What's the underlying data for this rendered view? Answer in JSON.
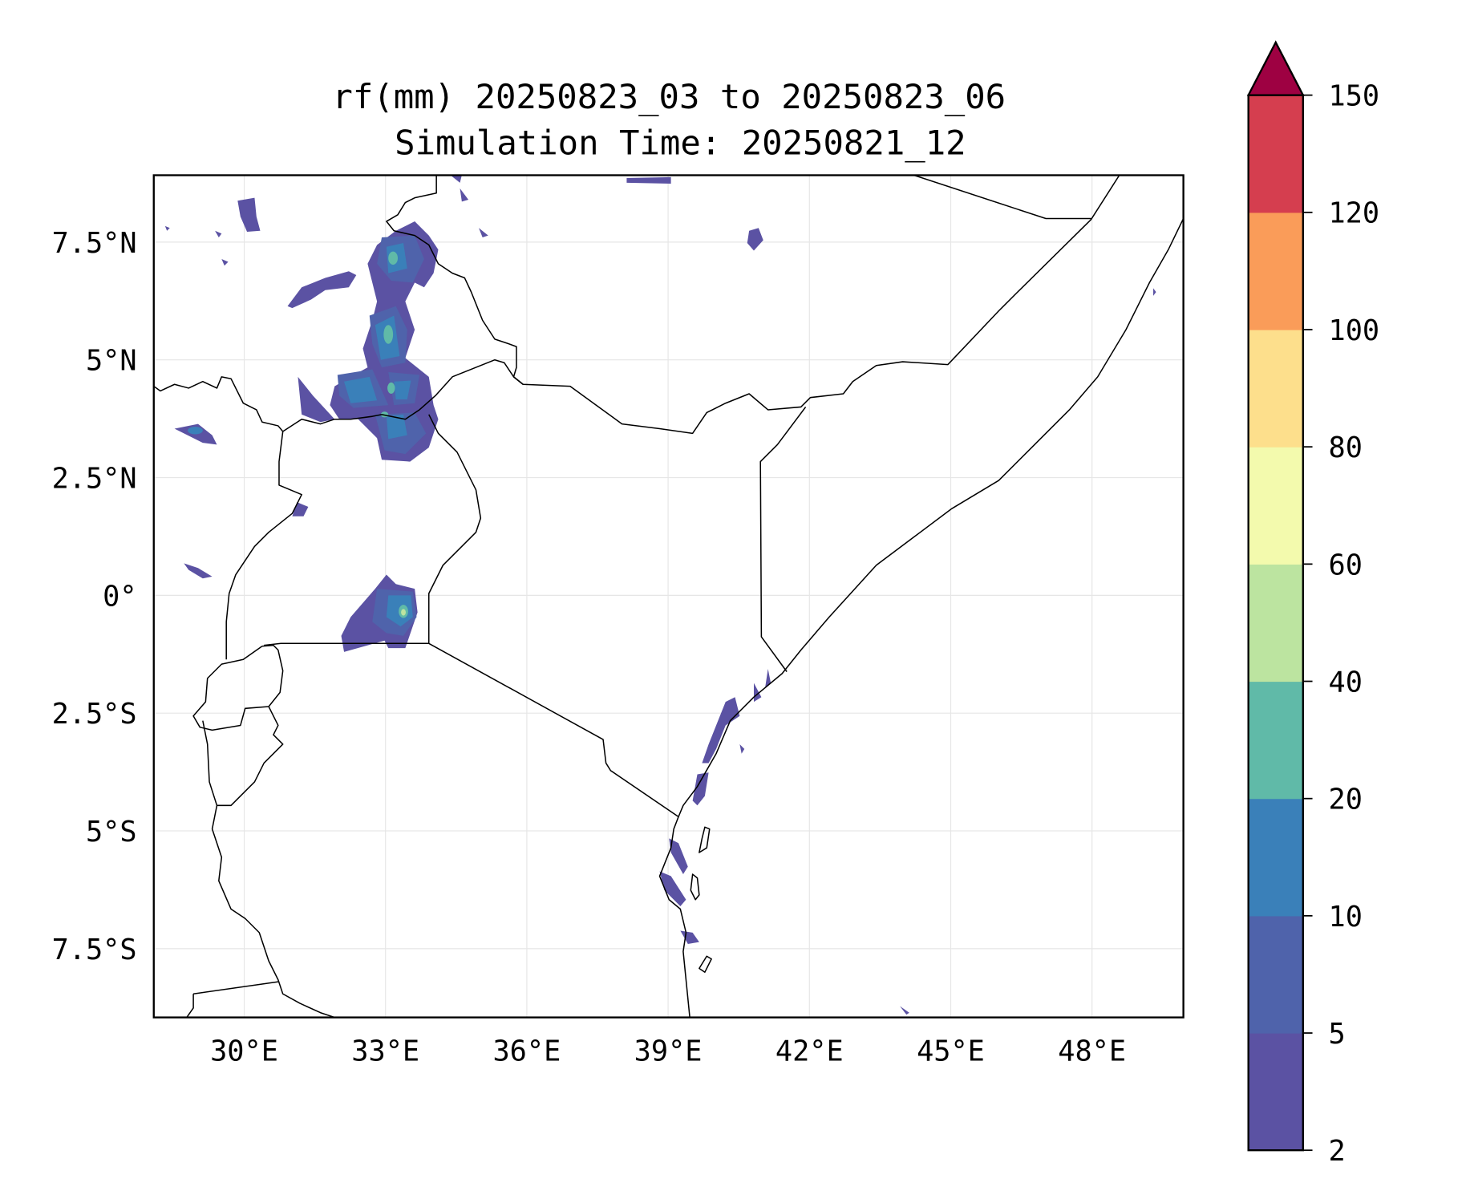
{
  "title": {
    "line1": "rf(mm) 20250823_03 to 20250823_06",
    "line2": "Simulation Time: 20250821_12"
  },
  "map": {
    "lon_range": [
      28.13,
      50.2
    ],
    "lat_range": [
      -8.83,
      8.9
    ],
    "lon_ticks": [
      {
        "value": 30,
        "label": "30°E"
      },
      {
        "value": 33,
        "label": "33°E"
      },
      {
        "value": 36,
        "label": "36°E"
      },
      {
        "value": 39,
        "label": "39°E"
      },
      {
        "value": 42,
        "label": "42°E"
      },
      {
        "value": 45,
        "label": "45°E"
      },
      {
        "value": 48,
        "label": "48°E"
      }
    ],
    "lat_ticks": [
      {
        "value": 7.5,
        "label": "7.5°N"
      },
      {
        "value": 5,
        "label": "5°N"
      },
      {
        "value": 2.5,
        "label": "2.5°N"
      },
      {
        "value": 0,
        "label": "0°"
      },
      {
        "value": -2.5,
        "label": "2.5°S"
      },
      {
        "value": -5,
        "label": "5°S"
      },
      {
        "value": -7.5,
        "label": "7.5°S"
      }
    ]
  },
  "colorbar": {
    "levels": [
      "2",
      "5",
      "10",
      "20",
      "40",
      "60",
      "80",
      "100",
      "120",
      "150"
    ],
    "colors": [
      "#5b52a3",
      "#4f63ab",
      "#3a80b9",
      "#60baa8",
      "#bce4a0",
      "#f3faad",
      "#fddf8c",
      "#fa9c59",
      "#d53e4f"
    ],
    "extend_color": "#9e0142"
  }
}
